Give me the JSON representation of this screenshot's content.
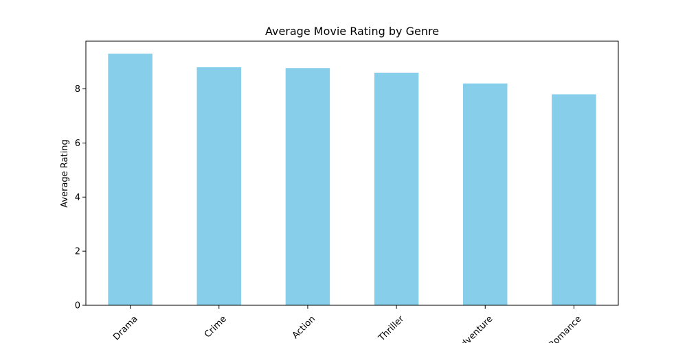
{
  "chart_data": {
    "type": "bar",
    "title": "Average Movie Rating by Genre",
    "xlabel": "",
    "ylabel": "Average Rating",
    "categories": [
      "Drama",
      "Crime",
      "Action",
      "Thriller",
      "Adventure",
      "Romance"
    ],
    "values": [
      9.3,
      8.8,
      8.77,
      8.6,
      8.2,
      7.8
    ],
    "ylim": [
      0,
      9.765
    ],
    "yticks": [
      0,
      2,
      4,
      6,
      8
    ],
    "grid": false,
    "bar_color": "#87CEEB"
  }
}
